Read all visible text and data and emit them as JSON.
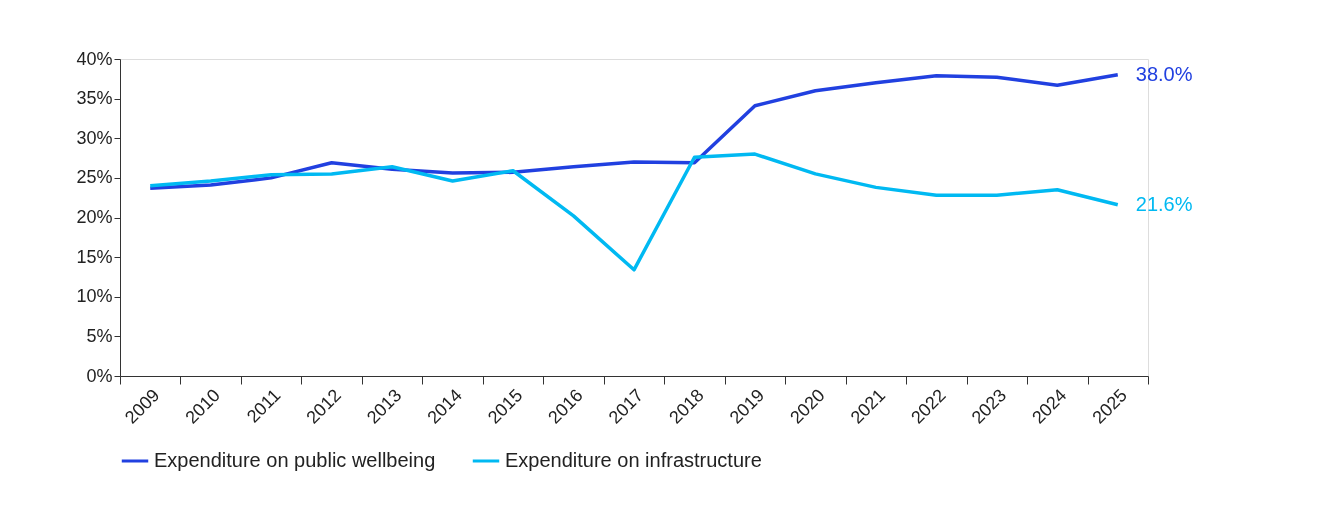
{
  "chart_data": {
    "type": "line",
    "categories": [
      "2009",
      "2010",
      "2011",
      "2012",
      "2013",
      "2014",
      "2015",
      "2016",
      "2017",
      "2018",
      "2019",
      "2020",
      "2021",
      "2022",
      "2023",
      "2024",
      "2025"
    ],
    "series": [
      {
        "name": "Expenditure on public wellbeing",
        "color": "#2140e0",
        "values": [
          23.7,
          24.1,
          25.0,
          26.9,
          26.1,
          25.6,
          25.7,
          26.4,
          27.0,
          26.9,
          34.1,
          36.0,
          37.0,
          37.9,
          37.7,
          36.7,
          38.0
        ],
        "value_labels": [
          null,
          null,
          null,
          null,
          null,
          null,
          null,
          null,
          null,
          null,
          null,
          null,
          null,
          null,
          null,
          null,
          "38.0%"
        ]
      },
      {
        "name": "Expenditure on infrastructure",
        "color": "#00b9f2",
        "values": [
          24.0,
          24.6,
          25.4,
          25.5,
          26.4,
          24.6,
          25.9,
          20.2,
          13.4,
          27.6,
          28.0,
          25.5,
          23.8,
          22.8,
          22.8,
          23.5,
          21.6
        ],
        "value_labels": [
          null,
          null,
          null,
          null,
          null,
          null,
          null,
          null,
          null,
          null,
          null,
          null,
          null,
          null,
          null,
          null,
          "21.6%"
        ]
      }
    ],
    "ylim": [
      0,
      40
    ],
    "yticks": [
      {
        "value": 0,
        "label": "0%"
      },
      {
        "value": 5,
        "label": "5%"
      },
      {
        "value": 10,
        "label": "10%"
      },
      {
        "value": 15,
        "label": "15%"
      },
      {
        "value": 20,
        "label": "20%"
      },
      {
        "value": 25,
        "label": "25%"
      },
      {
        "value": 30,
        "label": "30%"
      },
      {
        "value": 35,
        "label": "35%"
      },
      {
        "value": 40,
        "label": "40%"
      }
    ],
    "grid": false,
    "legend": "bottom",
    "marker": "none",
    "line_style": "solid"
  }
}
